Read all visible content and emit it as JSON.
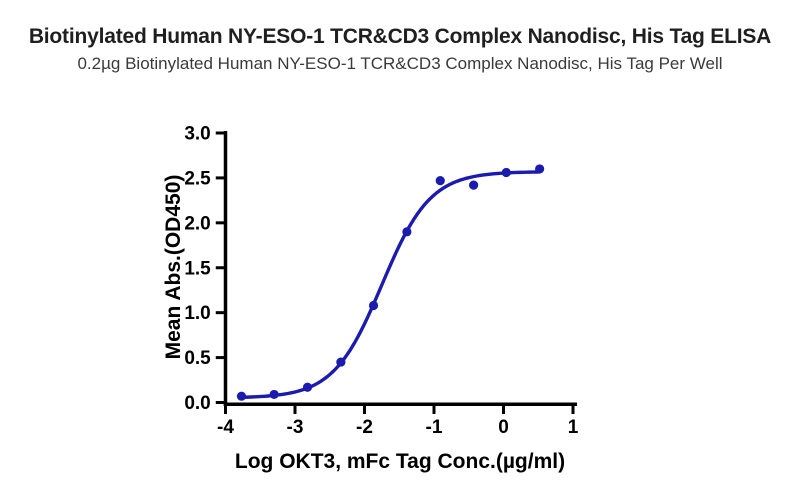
{
  "header": {
    "title": "Biotinylated Human NY-ESO-1 TCR&CD3 Complex Nanodisc, His Tag ELISA",
    "subtitle": "0.2µg Biotinylated Human NY-ESO-1 TCR&CD3 Complex Nanodisc, His Tag Per Well"
  },
  "colors": {
    "curve": "#1b1bad",
    "point": "#1b1bad",
    "axis": "#000000",
    "tick_label": "#000000",
    "title_text": "#1f1f1f",
    "subtitle_text": "#3a3a3a",
    "background": "#ffffff"
  },
  "chart_data": {
    "type": "scatter",
    "title": "Biotinylated Human NY-ESO-1 TCR&CD3 Complex Nanodisc, His Tag ELISA",
    "subtitle": "0.2µg Biotinylated Human NY-ESO-1 TCR&CD3 Complex Nanodisc, His Tag Per Well",
    "xlabel": "Log OKT3, mFc Tag Conc.(µg/ml)",
    "ylabel": "Mean Abs.(OD450)",
    "xlim": [
      -4,
      1
    ],
    "ylim": [
      0,
      3
    ],
    "x_tick_labels": [
      "-4",
      "-3",
      "-2",
      "-1",
      "0",
      "1"
    ],
    "y_tick_labels": [
      "0.0",
      "0.5",
      "1.0",
      "1.5",
      "2.0",
      "2.5",
      "3.0"
    ],
    "grid": false,
    "legend": null,
    "points": [
      {
        "x": -3.77,
        "y": 0.07
      },
      {
        "x": -3.3,
        "y": 0.09
      },
      {
        "x": -2.82,
        "y": 0.17
      },
      {
        "x": -2.34,
        "y": 0.45
      },
      {
        "x": -1.87,
        "y": 1.08
      },
      {
        "x": -1.39,
        "y": 1.9
      },
      {
        "x": -0.91,
        "y": 2.47
      },
      {
        "x": -0.43,
        "y": 2.42
      },
      {
        "x": 0.04,
        "y": 2.56
      },
      {
        "x": 0.52,
        "y": 2.6
      }
    ],
    "fit_curve": {
      "model": "4PL",
      "bottom": 0.05,
      "top": 2.57,
      "log_ec50": -1.75,
      "hill_slope": 1.25,
      "x_start": -3.77,
      "x_end": 0.52
    }
  }
}
